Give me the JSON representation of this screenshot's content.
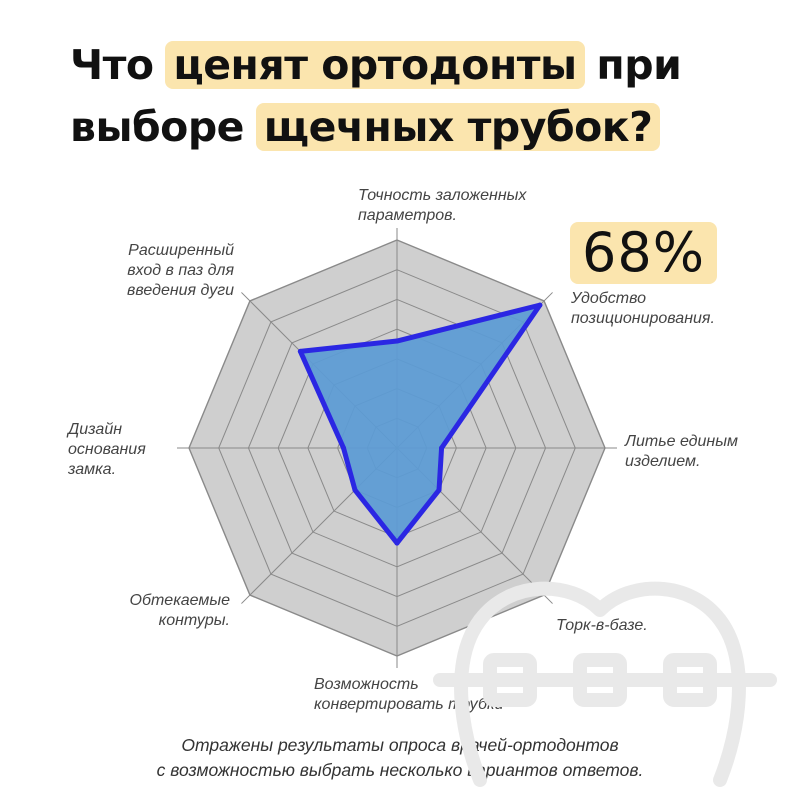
{
  "header": {
    "title_parts": [
      {
        "text": "Что ",
        "hl": false
      },
      {
        "text": "ценят ортодонты",
        "hl": true
      },
      {
        "text": " при выборе ",
        "hl": false
      },
      {
        "text": "щечных трубок?",
        "hl": true
      }
    ]
  },
  "callout": {
    "value": "68%"
  },
  "caption": "Отражены результаты опроса врачей-ортодонтов\nс возможностью выбрать несколько вариантов ответов.",
  "colors": {
    "fill": "#5b9bd5",
    "stroke": "#2b27e3",
    "grid_fill": "#cfcfcf",
    "grid_stroke": "#8a8a8a",
    "highlight": "#fbe5ae"
  },
  "chart_data": {
    "type": "radar",
    "unit": "%",
    "rmax": 70,
    "rings": 7,
    "axes": [
      "Точность заложенных параметров.",
      "Удобство позиционирования.",
      "Литье единым изделием.",
      "Торк-в-базе.",
      "Возможность конвертировать трубки",
      "Обтекаемые контуры.",
      "Дизайн основания замка.",
      "Расширенный вход в паз для введения дуги"
    ],
    "axis_label_lines": [
      "Точность заложенных\nпараметров.",
      "Удобство\nпозиционирования.",
      "Литье единым\nизделием.",
      "Торк-в-базе.",
      "Возможность\nконвертировать трубки",
      "Обтекаемые\nконтуры.",
      "Дизайн\nоснования\nзамка.",
      "Расширенный\nвход в паз для\nвведения дуги"
    ],
    "values": [
      36,
      68,
      15,
      20,
      32,
      20,
      18,
      46
    ]
  }
}
